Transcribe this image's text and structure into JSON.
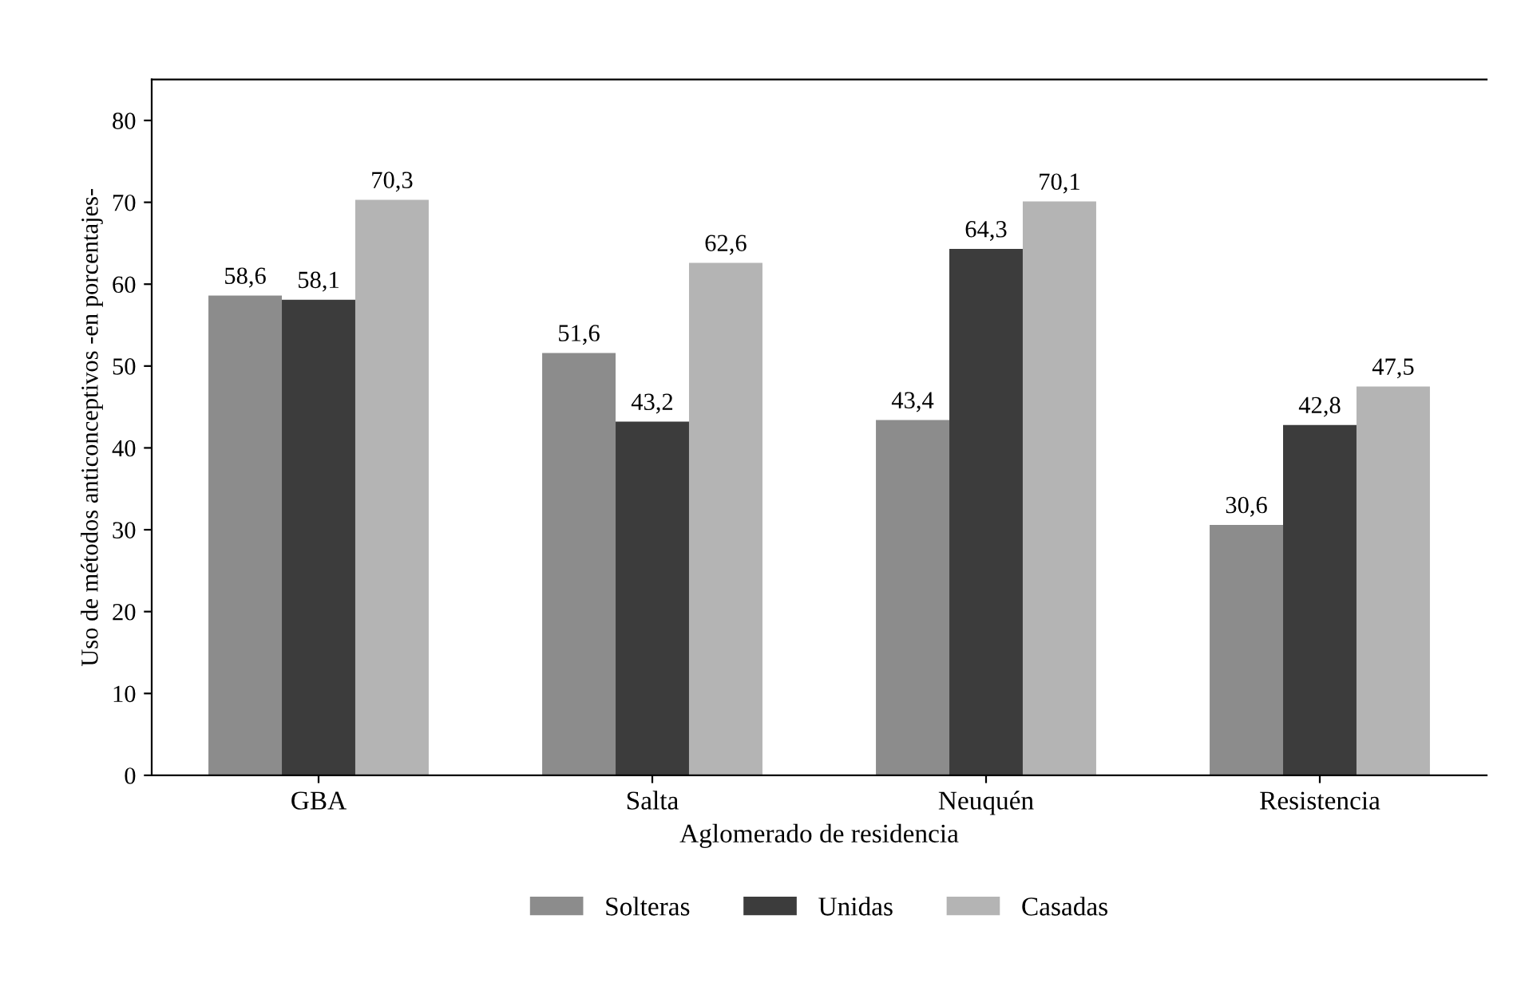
{
  "chart_data": {
    "type": "bar",
    "xlabel": "Aglomerado de residencia",
    "ylabel": "Uso de métodos anticonceptivos -en porcentajes-",
    "categories": [
      "GBA",
      "Salta",
      "Neuquén",
      "Resistencia"
    ],
    "series": [
      {
        "name": "Solteras",
        "color": "#8c8c8c",
        "values": [
          58.6,
          51.6,
          43.4,
          30.6
        ],
        "value_labels": [
          "58,6",
          "51,6",
          "43,4",
          "30,6"
        ]
      },
      {
        "name": "Unidas",
        "color": "#3c3c3c",
        "values": [
          58.1,
          43.2,
          64.3,
          42.8
        ],
        "value_labels": [
          "58,1",
          "43,2",
          "64,3",
          "42,8"
        ]
      },
      {
        "name": "Casadas",
        "color": "#b4b4b4",
        "values": [
          70.3,
          62.6,
          70.1,
          47.5
        ],
        "value_labels": [
          "70,3",
          "62,6",
          "70,1",
          "47,5"
        ]
      }
    ],
    "ylim": [
      0,
      85
    ],
    "yticks": [
      0,
      10,
      20,
      30,
      40,
      50,
      60,
      70,
      80
    ],
    "grid": false,
    "legend": "bottom"
  }
}
